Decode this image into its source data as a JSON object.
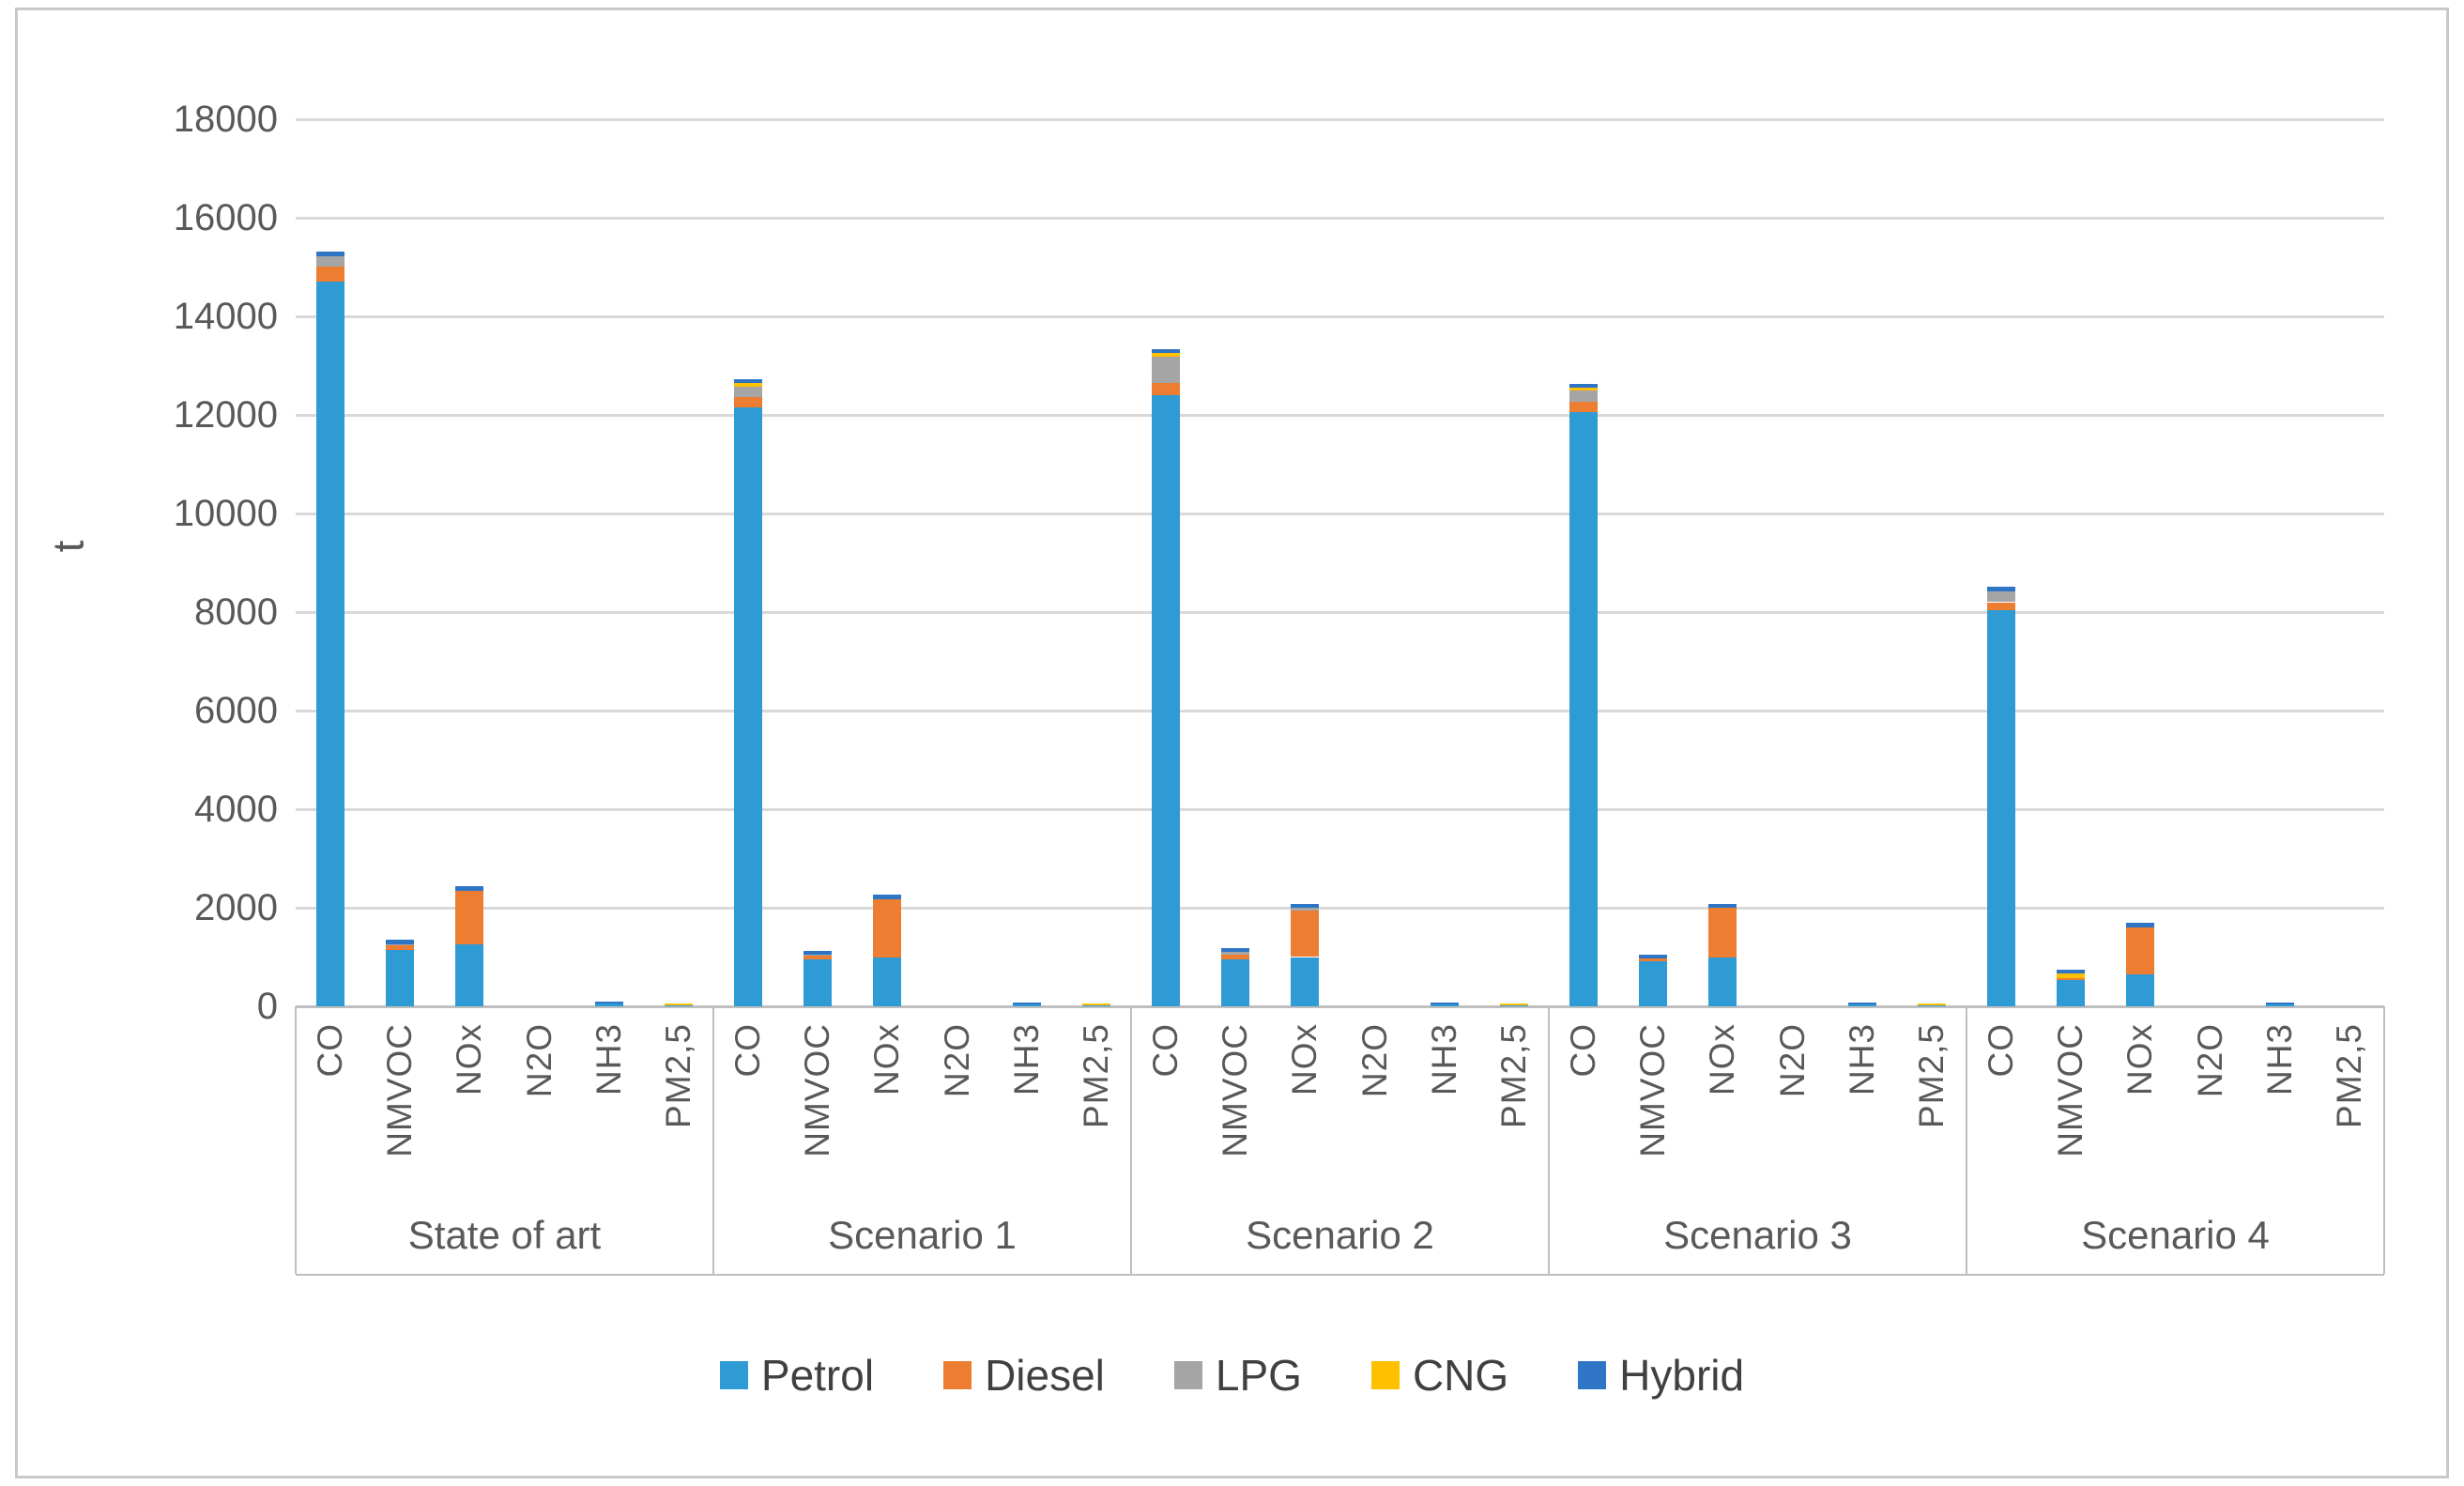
{
  "figure": {
    "background_color": "#FFFFFF",
    "border_color": "#C9C9C9"
  },
  "chart_data": {
    "type": "bar",
    "stacked": true,
    "title": "",
    "xlabel": "",
    "ylabel": "t",
    "ylim": [
      0,
      18000
    ],
    "ytick_step": 2000,
    "grid": true,
    "grid_color": "#D9D9D9",
    "axis_color": "#BFBFBF",
    "text_color": "#595959",
    "legend_position": "bottom",
    "categories": [
      "CO",
      "NMVOC",
      "NOx",
      "N2O",
      "NH3",
      "PM2,5"
    ],
    "groups": [
      "State of art",
      "Scenario 1",
      "Scenario 2",
      "Scenario 3",
      "Scenario 4"
    ],
    "series": [
      {
        "name": "Petrol",
        "color": "#2E9BD5",
        "values": [
          [
            14700,
            1150,
            1250,
            0,
            50,
            15
          ],
          [
            12150,
            950,
            990,
            0,
            45,
            10
          ],
          [
            12400,
            950,
            1000,
            0,
            45,
            10
          ],
          [
            12050,
            910,
            1000,
            0,
            45,
            10
          ],
          [
            8040,
            530,
            640,
            0,
            45,
            0
          ]
        ]
      },
      {
        "name": "Diesel",
        "color": "#ED7D31",
        "values": [
          [
            305,
            85,
            1100,
            0,
            0,
            0
          ],
          [
            210,
            90,
            1175,
            0,
            0,
            0
          ],
          [
            240,
            90,
            940,
            0,
            0,
            0
          ],
          [
            220,
            60,
            1000,
            0,
            0,
            0
          ],
          [
            160,
            50,
            960,
            0,
            0,
            0
          ]
        ]
      },
      {
        "name": "LPG",
        "color": "#A5A5A5",
        "values": [
          [
            220,
            20,
            0,
            0,
            0,
            0
          ],
          [
            220,
            10,
            0,
            0,
            0,
            0
          ],
          [
            540,
            60,
            60,
            0,
            0,
            0
          ],
          [
            220,
            0,
            0,
            0,
            0,
            0
          ],
          [
            220,
            0,
            0,
            0,
            0,
            0
          ]
        ]
      },
      {
        "name": "CNG",
        "color": "#FFC000",
        "values": [
          [
            0,
            0,
            0,
            0,
            0,
            50
          ],
          [
            60,
            0,
            0,
            0,
            0,
            50
          ],
          [
            75,
            0,
            0,
            0,
            0,
            50
          ],
          [
            60,
            0,
            0,
            0,
            0,
            50
          ],
          [
            0,
            80,
            0,
            0,
            0,
            0
          ]
        ]
      },
      {
        "name": "Hybrid",
        "color": "#2E75C6",
        "values": [
          [
            85,
            90,
            95,
            0,
            40,
            0
          ],
          [
            85,
            80,
            100,
            0,
            40,
            0
          ],
          [
            80,
            80,
            85,
            0,
            40,
            0
          ],
          [
            80,
            70,
            85,
            0,
            40,
            0
          ],
          [
            95,
            75,
            90,
            0,
            40,
            0
          ]
        ]
      }
    ]
  }
}
